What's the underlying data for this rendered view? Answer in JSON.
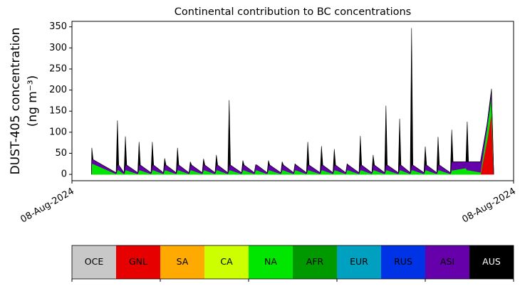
{
  "chart_data": {
    "type": "stacked_area",
    "title": "Continental contribution to BC concentrations",
    "ylabel": [
      "DUST-405 concentration",
      "(ng m⁻³)"
    ],
    "xlim": [
      0,
      1
    ],
    "xticks": [
      {
        "value": 0,
        "label": "08-Aug-2024"
      },
      {
        "value": 1,
        "label": "08-Aug-2024"
      }
    ],
    "ylim": [
      -15,
      363
    ],
    "yticks": [
      0,
      50,
      100,
      150,
      200,
      250,
      300,
      350
    ],
    "x": [
      0.044,
      0.045,
      0.048,
      0.1,
      0.103,
      0.106,
      0.118,
      0.121,
      0.124,
      0.149,
      0.152,
      0.155,
      0.179,
      0.182,
      0.185,
      0.207,
      0.21,
      0.213,
      0.236,
      0.239,
      0.242,
      0.265,
      0.268,
      0.271,
      0.295,
      0.298,
      0.301,
      0.324,
      0.327,
      0.33,
      0.353,
      0.356,
      0.359,
      0.384,
      0.387,
      0.39,
      0.413,
      0.416,
      0.419,
      0.442,
      0.445,
      0.448,
      0.473,
      0.476,
      0.479,
      0.502,
      0.505,
      0.508,
      0.531,
      0.534,
      0.537,
      0.562,
      0.565,
      0.568,
      0.591,
      0.594,
      0.597,
      0.62,
      0.623,
      0.626,
      0.65,
      0.653,
      0.656,
      0.679,
      0.682,
      0.685,
      0.708,
      0.711,
      0.714,
      0.739,
      0.742,
      0.745,
      0.766,
      0.769,
      0.772,
      0.797,
      0.8,
      0.803,
      0.826,
      0.829,
      0.832,
      0.857,
      0.86,
      0.863,
      0.892,
      0.895,
      0.898,
      0.925,
      0.94,
      0.95,
      0.955
    ],
    "series": [
      {
        "name": "GNL",
        "color": "#e60000",
        "values": [
          0,
          0,
          0,
          0,
          0,
          0,
          0,
          0,
          0,
          0,
          0,
          0,
          0,
          0,
          0,
          0,
          0,
          0,
          0,
          0,
          0,
          0,
          0,
          0,
          0,
          0,
          0,
          0,
          0,
          0,
          0,
          0,
          0,
          0,
          0,
          0,
          0,
          0,
          0,
          0,
          0,
          0,
          0,
          0,
          0,
          0,
          0,
          0,
          0,
          0,
          0,
          0,
          0,
          0,
          0,
          0,
          0,
          0,
          0,
          0,
          0,
          0,
          0,
          0,
          0,
          0,
          0,
          0,
          0,
          0,
          0,
          0,
          0,
          0,
          0,
          0,
          0,
          0,
          0,
          0,
          0,
          0,
          0,
          0,
          0,
          0,
          0,
          0,
          80,
          145,
          0
        ]
      },
      {
        "name": "NA",
        "color": "#00e600",
        "values": [
          0,
          25,
          25,
          1,
          10,
          10,
          1,
          10,
          10,
          1,
          10,
          10,
          1,
          10,
          10,
          1,
          10,
          10,
          1,
          10,
          10,
          1,
          10,
          10,
          1,
          10,
          10,
          1,
          10,
          10,
          1,
          10,
          10,
          1,
          10,
          10,
          1,
          10,
          10,
          1,
          10,
          10,
          1,
          10,
          10,
          1,
          10,
          10,
          1,
          10,
          10,
          1,
          10,
          10,
          1,
          10,
          10,
          1,
          10,
          10,
          1,
          10,
          10,
          1,
          10,
          10,
          1,
          10,
          10,
          1,
          10,
          10,
          1,
          10,
          10,
          1,
          10,
          10,
          1,
          10,
          10,
          1,
          10,
          10,
          15,
          10,
          10,
          5,
          30,
          40,
          0
        ]
      },
      {
        "name": "ASI",
        "color": "#6600aa",
        "values": [
          0,
          10,
          10,
          3,
          12,
          12,
          3,
          12,
          12,
          3,
          12,
          12,
          3,
          12,
          12,
          3,
          12,
          12,
          3,
          12,
          12,
          3,
          12,
          12,
          3,
          12,
          12,
          3,
          12,
          12,
          3,
          12,
          12,
          3,
          12,
          12,
          3,
          12,
          12,
          3,
          12,
          12,
          3,
          12,
          12,
          3,
          12,
          12,
          3,
          12,
          12,
          3,
          12,
          12,
          3,
          12,
          12,
          3,
          12,
          12,
          3,
          12,
          12,
          3,
          12,
          12,
          3,
          12,
          12,
          3,
          12,
          12,
          3,
          12,
          12,
          3,
          12,
          12,
          3,
          12,
          12,
          3,
          20,
          20,
          15,
          20,
          20,
          25,
          10,
          10,
          0
        ]
      },
      {
        "name": "AUS",
        "color": "#000000",
        "values": [
          0,
          28,
          0,
          0,
          106,
          0,
          0,
          68,
          0,
          0,
          55,
          0,
          0,
          55,
          0,
          0,
          16,
          0,
          0,
          41,
          0,
          0,
          8,
          0,
          0,
          15,
          0,
          0,
          24,
          0,
          0,
          154,
          0,
          0,
          11,
          0,
          0,
          1,
          0,
          0,
          11,
          0,
          0,
          8,
          0,
          0,
          3,
          0,
          0,
          55,
          0,
          0,
          45,
          0,
          0,
          38,
          0,
          0,
          3,
          0,
          0,
          69,
          0,
          0,
          24,
          0,
          0,
          141,
          0,
          0,
          110,
          0,
          0,
          325,
          0,
          0,
          44,
          0,
          0,
          67,
          0,
          0,
          76,
          0,
          0,
          95,
          0,
          0,
          0,
          8,
          0
        ]
      }
    ],
    "colorbar": {
      "labels": [
        "OCE",
        "GNL",
        "SA",
        "CA",
        "NA",
        "AFR",
        "EUR",
        "RUS",
        "ASI",
        "AUS"
      ],
      "colors": [
        "#c8c8c8",
        "#e60000",
        "#ffaa00",
        "#ccff00",
        "#00e600",
        "#009900",
        "#00a0c0",
        "#0033e6",
        "#6600aa",
        "#000000"
      ]
    }
  }
}
